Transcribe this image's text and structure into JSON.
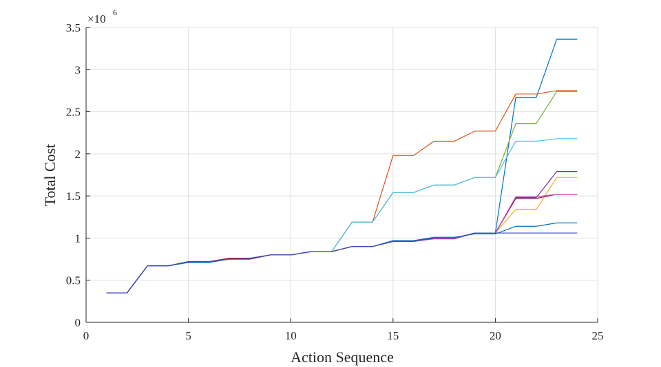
{
  "chart_data": {
    "type": "line",
    "xlabel": "Action Sequence",
    "ylabel": "Total Cost",
    "y_multiplier_base": "×10",
    "y_multiplier_exp": "6",
    "xlim": [
      0,
      25
    ],
    "ylim": [
      0,
      3.5
    ],
    "xticks": [
      0,
      5,
      10,
      15,
      20,
      25
    ],
    "xtick_labels": [
      "0",
      "5",
      "10",
      "15",
      "20",
      "25"
    ],
    "yticks": [
      0,
      0.5,
      1,
      1.5,
      2,
      2.5,
      3,
      3.5
    ],
    "ytick_labels": [
      "0",
      "0.5",
      "1",
      "1.5",
      "2",
      "2.5",
      "3",
      "3.5"
    ],
    "grid": true,
    "x": [
      1,
      2,
      3,
      4,
      5,
      6,
      7,
      8,
      9,
      10,
      11,
      12,
      13,
      14,
      15,
      16,
      17,
      18,
      19,
      20,
      21,
      22,
      23,
      24
    ],
    "series": [
      {
        "color": "#0072BD",
        "values": [
          0.35,
          0.35,
          0.67,
          0.67,
          0.72,
          0.72,
          0.76,
          0.76,
          0.8,
          0.8,
          0.84,
          0.84,
          0.9,
          0.9,
          0.96,
          0.96,
          1.0,
          1.0,
          1.06,
          1.06,
          2.67,
          2.67,
          3.36,
          3.36
        ]
      },
      {
        "color": "#D95319",
        "values": [
          0.35,
          0.35,
          0.67,
          0.67,
          0.72,
          0.72,
          0.76,
          0.76,
          0.8,
          0.8,
          0.84,
          0.84,
          1.19,
          1.19,
          1.98,
          1.98,
          2.15,
          2.15,
          2.27,
          2.27,
          2.71,
          2.71,
          2.75,
          2.75
        ]
      },
      {
        "color": "#EDB120",
        "values": [
          0.35,
          0.35,
          0.67,
          0.67,
          0.72,
          0.72,
          0.76,
          0.76,
          0.8,
          0.8,
          0.84,
          0.84,
          0.9,
          0.9,
          0.96,
          0.96,
          1.0,
          1.0,
          1.06,
          1.06,
          1.34,
          1.34,
          1.72,
          1.72
        ]
      },
      {
        "color": "#7E2F8E",
        "values": [
          0.35,
          0.35,
          0.67,
          0.67,
          0.72,
          0.72,
          0.76,
          0.76,
          0.8,
          0.8,
          0.84,
          0.84,
          0.9,
          0.9,
          0.96,
          0.96,
          1.0,
          1.0,
          1.06,
          1.06,
          1.48,
          1.48,
          1.79,
          1.79
        ]
      },
      {
        "color": "#77AC30",
        "values": [
          0.35,
          0.35,
          0.67,
          0.67,
          0.72,
          0.72,
          0.76,
          0.76,
          0.8,
          0.8,
          0.84,
          0.84,
          1.19,
          1.19,
          1.54,
          1.54,
          1.63,
          1.63,
          1.72,
          1.72,
          2.36,
          2.36,
          2.74,
          2.74
        ]
      },
      {
        "color": "#4DBEEE",
        "values": [
          0.35,
          0.35,
          0.67,
          0.67,
          0.72,
          0.72,
          0.76,
          0.76,
          0.8,
          0.8,
          0.84,
          0.84,
          1.19,
          1.19,
          1.54,
          1.54,
          1.63,
          1.63,
          1.72,
          1.72,
          2.15,
          2.15,
          2.18,
          2.18
        ]
      },
      {
        "color": "#A2142F",
        "values": [
          0.35,
          0.35,
          0.67,
          0.67,
          0.72,
          0.72,
          0.76,
          0.76,
          0.8,
          0.8,
          0.84,
          0.84,
          0.9,
          0.9,
          0.96,
          0.96,
          1.0,
          1.0,
          1.06,
          1.06,
          1.47,
          1.47,
          1.52,
          1.52
        ]
      },
      {
        "color": "#BD4BC9",
        "values": [
          0.35,
          0.35,
          0.67,
          0.67,
          0.72,
          0.72,
          0.75,
          0.75,
          0.8,
          0.8,
          0.84,
          0.84,
          0.9,
          0.9,
          0.96,
          0.96,
          0.99,
          0.99,
          1.06,
          1.06,
          1.49,
          1.49,
          1.52,
          1.52
        ]
      },
      {
        "color": "#0072BD",
        "values": [
          0.35,
          0.35,
          0.67,
          0.67,
          0.71,
          0.71,
          0.75,
          0.75,
          0.8,
          0.8,
          0.84,
          0.84,
          0.9,
          0.9,
          0.97,
          0.97,
          1.01,
          1.01,
          1.05,
          1.05,
          1.14,
          1.14,
          1.18,
          1.18
        ]
      },
      {
        "color": "#3D49B8",
        "values": [
          0.35,
          0.35,
          0.67,
          0.67,
          0.72,
          0.72,
          0.75,
          0.75,
          0.8,
          0.8,
          0.84,
          0.84,
          0.9,
          0.9,
          0.96,
          0.96,
          1.0,
          1.0,
          1.06,
          1.06,
          1.06,
          1.06,
          1.06,
          1.06
        ]
      }
    ]
  }
}
